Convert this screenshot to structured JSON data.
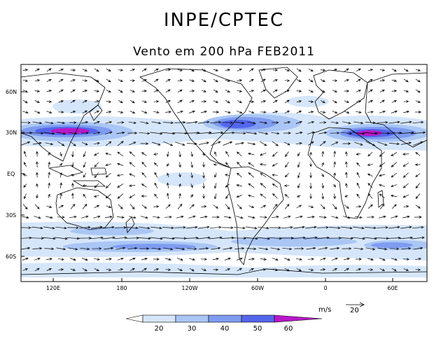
{
  "title": "INPE/CPTEC",
  "subtitle": "Vento em 200 hPa FEB2011",
  "lat_labels": [
    "60N",
    "30N",
    "EQ",
    "30S",
    "60S"
  ],
  "lon_labels": [
    "120E",
    "180",
    "120W",
    "60W",
    "0",
    "60E"
  ],
  "colorbar": {
    "ticks": [
      "20",
      "30",
      "40",
      "50",
      "60"
    ],
    "colors": [
      "#ffffff",
      "#d6e6fa",
      "#aac6f5",
      "#7f9cf0",
      "#5466ea",
      "#b818c8"
    ]
  },
  "vector_legend": {
    "unit": "m/s",
    "value": "20"
  },
  "colors": {
    "land_outline": "#000000",
    "arrow": "#000000",
    "jet_core": "#b818c8"
  }
}
